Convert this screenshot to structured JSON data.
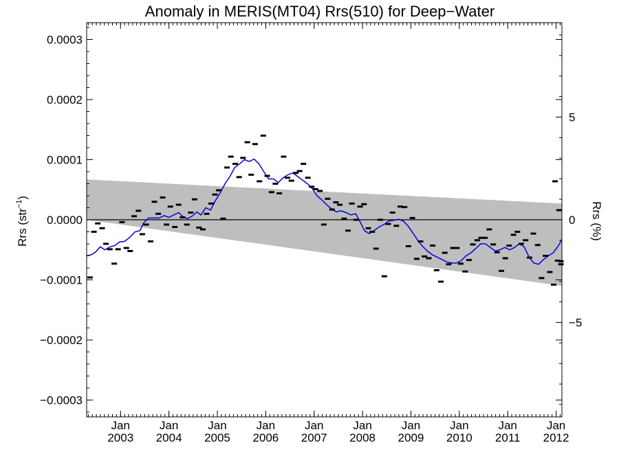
{
  "chart_data": {
    "type": "scatter",
    "title": "Anomaly in MERIS(MT04) Rrs(510) for Deep−Water",
    "ylabel_base": "Rrs (str",
    "ylabel_sup": "−1",
    "ylabel_end": ")",
    "y2label": "Rrs (%)",
    "xlim": [
      2002.3,
      2012.12
    ],
    "ylim": [
      -0.000328,
      0.000328
    ],
    "y2lim": [
      -9.6,
      9.6
    ],
    "grid": false,
    "y_ticks": [
      {
        "value": 0.0003,
        "label": "0.0003"
      },
      {
        "value": 0.0002,
        "label": "0.0002"
      },
      {
        "value": 0.0001,
        "label": "0.0001"
      },
      {
        "value": 0.0,
        "label": "0.0000"
      },
      {
        "value": -0.0001,
        "label": "−0.0001"
      },
      {
        "value": -0.0002,
        "label": "−0.0002"
      },
      {
        "value": -0.0003,
        "label": "−0.0003"
      }
    ],
    "y2_ticks": [
      {
        "value": 5,
        "label": "5"
      },
      {
        "value": 0,
        "label": "0"
      },
      {
        "value": -5,
        "label": "−5"
      }
    ],
    "x_ticks": [
      {
        "value": 2003.0,
        "month": "Jan",
        "year": "2003"
      },
      {
        "value": 2004.0,
        "month": "Jan",
        "year": "2004"
      },
      {
        "value": 2005.0,
        "month": "Jan",
        "year": "2005"
      },
      {
        "value": 2006.0,
        "month": "Jan",
        "year": "2006"
      },
      {
        "value": 2007.0,
        "month": "Jan",
        "year": "2007"
      },
      {
        "value": 2008.0,
        "month": "Jan",
        "year": "2008"
      },
      {
        "value": 2009.0,
        "month": "Jan",
        "year": "2009"
      },
      {
        "value": 2010.0,
        "month": "Jan",
        "year": "2010"
      },
      {
        "value": 2011.0,
        "month": "Jan",
        "year": "2011"
      },
      {
        "value": 2012.0,
        "month": "Jan",
        "year": "2012"
      }
    ],
    "uncertainty_band": {
      "color": "#bebebe",
      "x": [
        2002.3,
        2012.12
      ],
      "upper": [
        6.7e-05,
        2.7e-05
      ],
      "lower": [
        0.0,
        -0.00011
      ]
    },
    "zero_line": {
      "value": 0.0,
      "color": "#000000"
    },
    "series": [
      {
        "kind": "monthly_points",
        "color": "#000000",
        "points": [
          [
            2002.37,
            -9.6e-05
          ],
          [
            2002.45,
            -2e-05
          ],
          [
            2002.53,
            -6e-06
          ],
          [
            2002.62,
            -1.4e-05
          ],
          [
            2002.7,
            -4e-05
          ],
          [
            2002.78,
            -4.9e-05
          ],
          [
            2002.87,
            -7.3e-05
          ],
          [
            2002.95,
            -4.9e-05
          ],
          [
            2003.03,
            -4e-06
          ],
          [
            2003.12,
            -4.7e-05
          ],
          [
            2003.2,
            -5.2e-05
          ],
          [
            2003.28,
            6e-06
          ],
          [
            2003.37,
            1.5e-05
          ],
          [
            2003.45,
            -2.4e-05
          ],
          [
            2003.53,
            -8e-06
          ],
          [
            2003.62,
            -3.6e-05
          ],
          [
            2003.7,
            3e-05
          ],
          [
            2003.78,
            1e-05
          ],
          [
            2003.87,
            3.7e-05
          ],
          [
            2003.95,
            -8e-06
          ],
          [
            2004.03,
            2.2e-05
          ],
          [
            2004.12,
            -1.2e-05
          ],
          [
            2004.2,
            2.5e-05
          ],
          [
            2004.28,
            4e-06
          ],
          [
            2004.37,
            -8e-06
          ],
          [
            2004.45,
            1.2e-05
          ],
          [
            2004.53,
            3.4e-05
          ],
          [
            2004.62,
            -1.3e-05
          ],
          [
            2004.7,
            -1.6e-05
          ],
          [
            2004.78,
            1e-05
          ],
          [
            2004.87,
            2.7e-05
          ],
          [
            2004.95,
            4.2e-05
          ],
          [
            2005.03,
            4.9e-05
          ],
          [
            2005.12,
            2e-06
          ],
          [
            2005.2,
            8.7e-05
          ],
          [
            2005.28,
            0.000105
          ],
          [
            2005.37,
            9.3e-05
          ],
          [
            2005.45,
            7.1e-05
          ],
          [
            2005.53,
            0.000103
          ],
          [
            2005.62,
            0.000129
          ],
          [
            2005.7,
            7.5e-05
          ],
          [
            2005.78,
            0.000126
          ],
          [
            2005.87,
            6.4e-05
          ],
          [
            2005.95,
            0.00014
          ],
          [
            2006.03,
            7.3e-05
          ],
          [
            2006.12,
            4.6e-05
          ],
          [
            2006.2,
            6e-05
          ],
          [
            2006.28,
            4.4e-05
          ],
          [
            2006.37,
            0.000105
          ],
          [
            2006.45,
            7e-05
          ],
          [
            2006.53,
            6.5e-05
          ],
          [
            2006.62,
            7.8e-05
          ],
          [
            2006.7,
            8.1e-05
          ],
          [
            2006.78,
            9.3e-05
          ],
          [
            2006.87,
            7e-05
          ],
          [
            2006.95,
            5.5e-05
          ],
          [
            2007.03,
            5.1e-05
          ],
          [
            2007.12,
            4.8e-05
          ],
          [
            2007.2,
            -8e-06
          ],
          [
            2007.28,
            3.5e-05
          ],
          [
            2007.37,
            1.7e-05
          ],
          [
            2007.45,
            2.9e-05
          ],
          [
            2007.53,
            2.5e-05
          ],
          [
            2007.62,
            2e-06
          ],
          [
            2007.7,
            -1.8e-05
          ],
          [
            2007.78,
            2.7e-05
          ],
          [
            2007.87,
            0.0
          ],
          [
            2007.95,
            2.2e-05
          ],
          [
            2008.03,
            2.6e-05
          ],
          [
            2008.12,
            -1.4e-05
          ],
          [
            2008.2,
            -2e-05
          ],
          [
            2008.28,
            -4.8e-05
          ],
          [
            2008.37,
            0.0
          ],
          [
            2008.45,
            -9.4e-05
          ],
          [
            2008.53,
            -7e-06
          ],
          [
            2008.62,
            1.2e-05
          ],
          [
            2008.7,
            -1e-05
          ],
          [
            2008.78,
            2.2e-05
          ],
          [
            2008.87,
            2.1e-05
          ],
          [
            2008.95,
            -4.4e-05
          ],
          [
            2009.03,
            3e-06
          ],
          [
            2009.12,
            -6.5e-05
          ],
          [
            2009.2,
            -3.6e-05
          ],
          [
            2009.28,
            -6.1e-05
          ],
          [
            2009.37,
            -6.4e-05
          ],
          [
            2009.45,
            -4.3e-05
          ],
          [
            2009.53,
            -8.4e-05
          ],
          [
            2009.62,
            -0.000103
          ],
          [
            2009.7,
            -5.5e-05
          ],
          [
            2009.78,
            -7.4e-05
          ],
          [
            2009.87,
            -4.7e-05
          ],
          [
            2009.95,
            -4.7e-05
          ],
          [
            2010.03,
            -7.3e-05
          ],
          [
            2010.12,
            -8.6e-05
          ],
          [
            2010.2,
            -6.7e-05
          ],
          [
            2010.28,
            -4.1e-05
          ],
          [
            2010.37,
            -3.4e-05
          ],
          [
            2010.45,
            -3e-05
          ],
          [
            2010.53,
            -3e-05
          ],
          [
            2010.62,
            -1.6e-05
          ],
          [
            2010.7,
            -4.1e-05
          ],
          [
            2010.78,
            -5.4e-05
          ],
          [
            2010.87,
            -8.5e-05
          ],
          [
            2010.95,
            -6.4e-05
          ],
          [
            2011.03,
            -4.3e-05
          ],
          [
            2011.12,
            -2.5e-05
          ],
          [
            2011.2,
            -2e-05
          ],
          [
            2011.28,
            -4e-05
          ],
          [
            2011.37,
            -3.4e-05
          ],
          [
            2011.45,
            -6.3e-05
          ],
          [
            2011.53,
            -2.3e-05
          ],
          [
            2011.62,
            -4.2e-05
          ],
          [
            2011.7,
            -9.7e-05
          ],
          [
            2011.78,
            -6e-05
          ],
          [
            2011.87,
            -8.7e-05
          ],
          [
            2011.95,
            -0.000108
          ],
          [
            2012.03,
            -6.8e-05
          ],
          [
            2012.1,
            -6.9e-05
          ],
          [
            2011.98,
            6.4e-05
          ],
          [
            2012.06,
            1.6e-05
          ],
          [
            2012.1,
            -7.4e-05
          ]
        ]
      },
      {
        "kind": "smoothed_line",
        "color": "#0000dd",
        "points": [
          [
            2002.3,
            -6e-05
          ],
          [
            2002.4,
            -5.8e-05
          ],
          [
            2002.48,
            -5.4e-05
          ],
          [
            2002.58,
            -4.5e-05
          ],
          [
            2002.68,
            -5e-05
          ],
          [
            2002.78,
            -4.5e-05
          ],
          [
            2002.88,
            -4.3e-05
          ],
          [
            2002.98,
            -3.7e-05
          ],
          [
            2003.08,
            -3.6e-05
          ],
          [
            2003.18,
            -3e-05
          ],
          [
            2003.3,
            -2e-05
          ],
          [
            2003.4,
            -1.8e-05
          ],
          [
            2003.48,
            -5e-06
          ],
          [
            2003.58,
            3e-06
          ],
          [
            2003.7,
            3e-06
          ],
          [
            2003.8,
            3e-06
          ],
          [
            2003.9,
            7e-06
          ],
          [
            2004.0,
            4e-06
          ],
          [
            2004.1,
            8e-06
          ],
          [
            2004.2,
            1.2e-05
          ],
          [
            2004.28,
            6e-06
          ],
          [
            2004.38,
            2e-06
          ],
          [
            2004.48,
            6e-06
          ],
          [
            2004.58,
            1.3e-05
          ],
          [
            2004.66,
            8e-06
          ],
          [
            2004.76,
            2e-05
          ],
          [
            2004.86,
            1.6e-05
          ],
          [
            2004.96,
            3.2e-05
          ],
          [
            2005.06,
            4.5e-05
          ],
          [
            2005.16,
            6e-05
          ],
          [
            2005.26,
            7.2e-05
          ],
          [
            2005.36,
            8.7e-05
          ],
          [
            2005.46,
            9.3e-05
          ],
          [
            2005.56,
            0.0001
          ],
          [
            2005.66,
            9.7e-05
          ],
          [
            2005.76,
            0.000101
          ],
          [
            2005.86,
            9.3e-05
          ],
          [
            2005.96,
            8e-05
          ],
          [
            2006.06,
            6.8e-05
          ],
          [
            2006.16,
            6.8e-05
          ],
          [
            2006.26,
            6.2e-05
          ],
          [
            2006.36,
            7e-05
          ],
          [
            2006.46,
            7.5e-05
          ],
          [
            2006.56,
            7.8e-05
          ],
          [
            2006.66,
            7.2e-05
          ],
          [
            2006.76,
            6.6e-05
          ],
          [
            2006.86,
            6e-05
          ],
          [
            2006.96,
            5.2e-05
          ],
          [
            2007.06,
            4e-05
          ],
          [
            2007.16,
            3.3e-05
          ],
          [
            2007.26,
            2.5e-05
          ],
          [
            2007.36,
            1.8e-05
          ],
          [
            2007.46,
            1.3e-05
          ],
          [
            2007.56,
            1.5e-05
          ],
          [
            2007.66,
            1.2e-05
          ],
          [
            2007.76,
            8e-06
          ],
          [
            2007.86,
            1e-05
          ],
          [
            2007.96,
            -5e-06
          ],
          [
            2008.04,
            -1.8e-05
          ],
          [
            2008.14,
            -2.3e-05
          ],
          [
            2008.24,
            -1.8e-05
          ],
          [
            2008.34,
            -1.2e-05
          ],
          [
            2008.44,
            -8e-06
          ],
          [
            2008.54,
            -2e-06
          ],
          [
            2008.64,
            -1e-06
          ],
          [
            2008.74,
            1e-06
          ],
          [
            2008.84,
            -2e-06
          ],
          [
            2008.94,
            -1e-05
          ],
          [
            2009.04,
            -2.2e-05
          ],
          [
            2009.14,
            -3.4e-05
          ],
          [
            2009.24,
            -4.4e-05
          ],
          [
            2009.34,
            -5.2e-05
          ],
          [
            2009.44,
            -5.8e-05
          ],
          [
            2009.54,
            -6.2e-05
          ],
          [
            2009.64,
            -6.6e-05
          ],
          [
            2009.74,
            -7e-05
          ],
          [
            2009.84,
            -7.2e-05
          ],
          [
            2009.94,
            -7.2e-05
          ],
          [
            2010.04,
            -6.8e-05
          ],
          [
            2010.14,
            -6e-05
          ],
          [
            2010.24,
            -5.5e-05
          ],
          [
            2010.34,
            -4.8e-05
          ],
          [
            2010.44,
            -4e-05
          ],
          [
            2010.54,
            -4e-05
          ],
          [
            2010.64,
            -4.6e-05
          ],
          [
            2010.74,
            -5.2e-05
          ],
          [
            2010.84,
            -5e-05
          ],
          [
            2010.94,
            -4.6e-05
          ],
          [
            2011.04,
            -5e-05
          ],
          [
            2011.14,
            -4.6e-05
          ],
          [
            2011.24,
            -4e-05
          ],
          [
            2011.34,
            -4.5e-05
          ],
          [
            2011.44,
            -6.2e-05
          ],
          [
            2011.54,
            -7.2e-05
          ],
          [
            2011.64,
            -7.4e-05
          ],
          [
            2011.74,
            -6.6e-05
          ],
          [
            2011.84,
            -6e-05
          ],
          [
            2011.94,
            -5.5e-05
          ],
          [
            2012.04,
            -4.4e-05
          ],
          [
            2012.12,
            -3.3e-05
          ]
        ]
      }
    ]
  }
}
